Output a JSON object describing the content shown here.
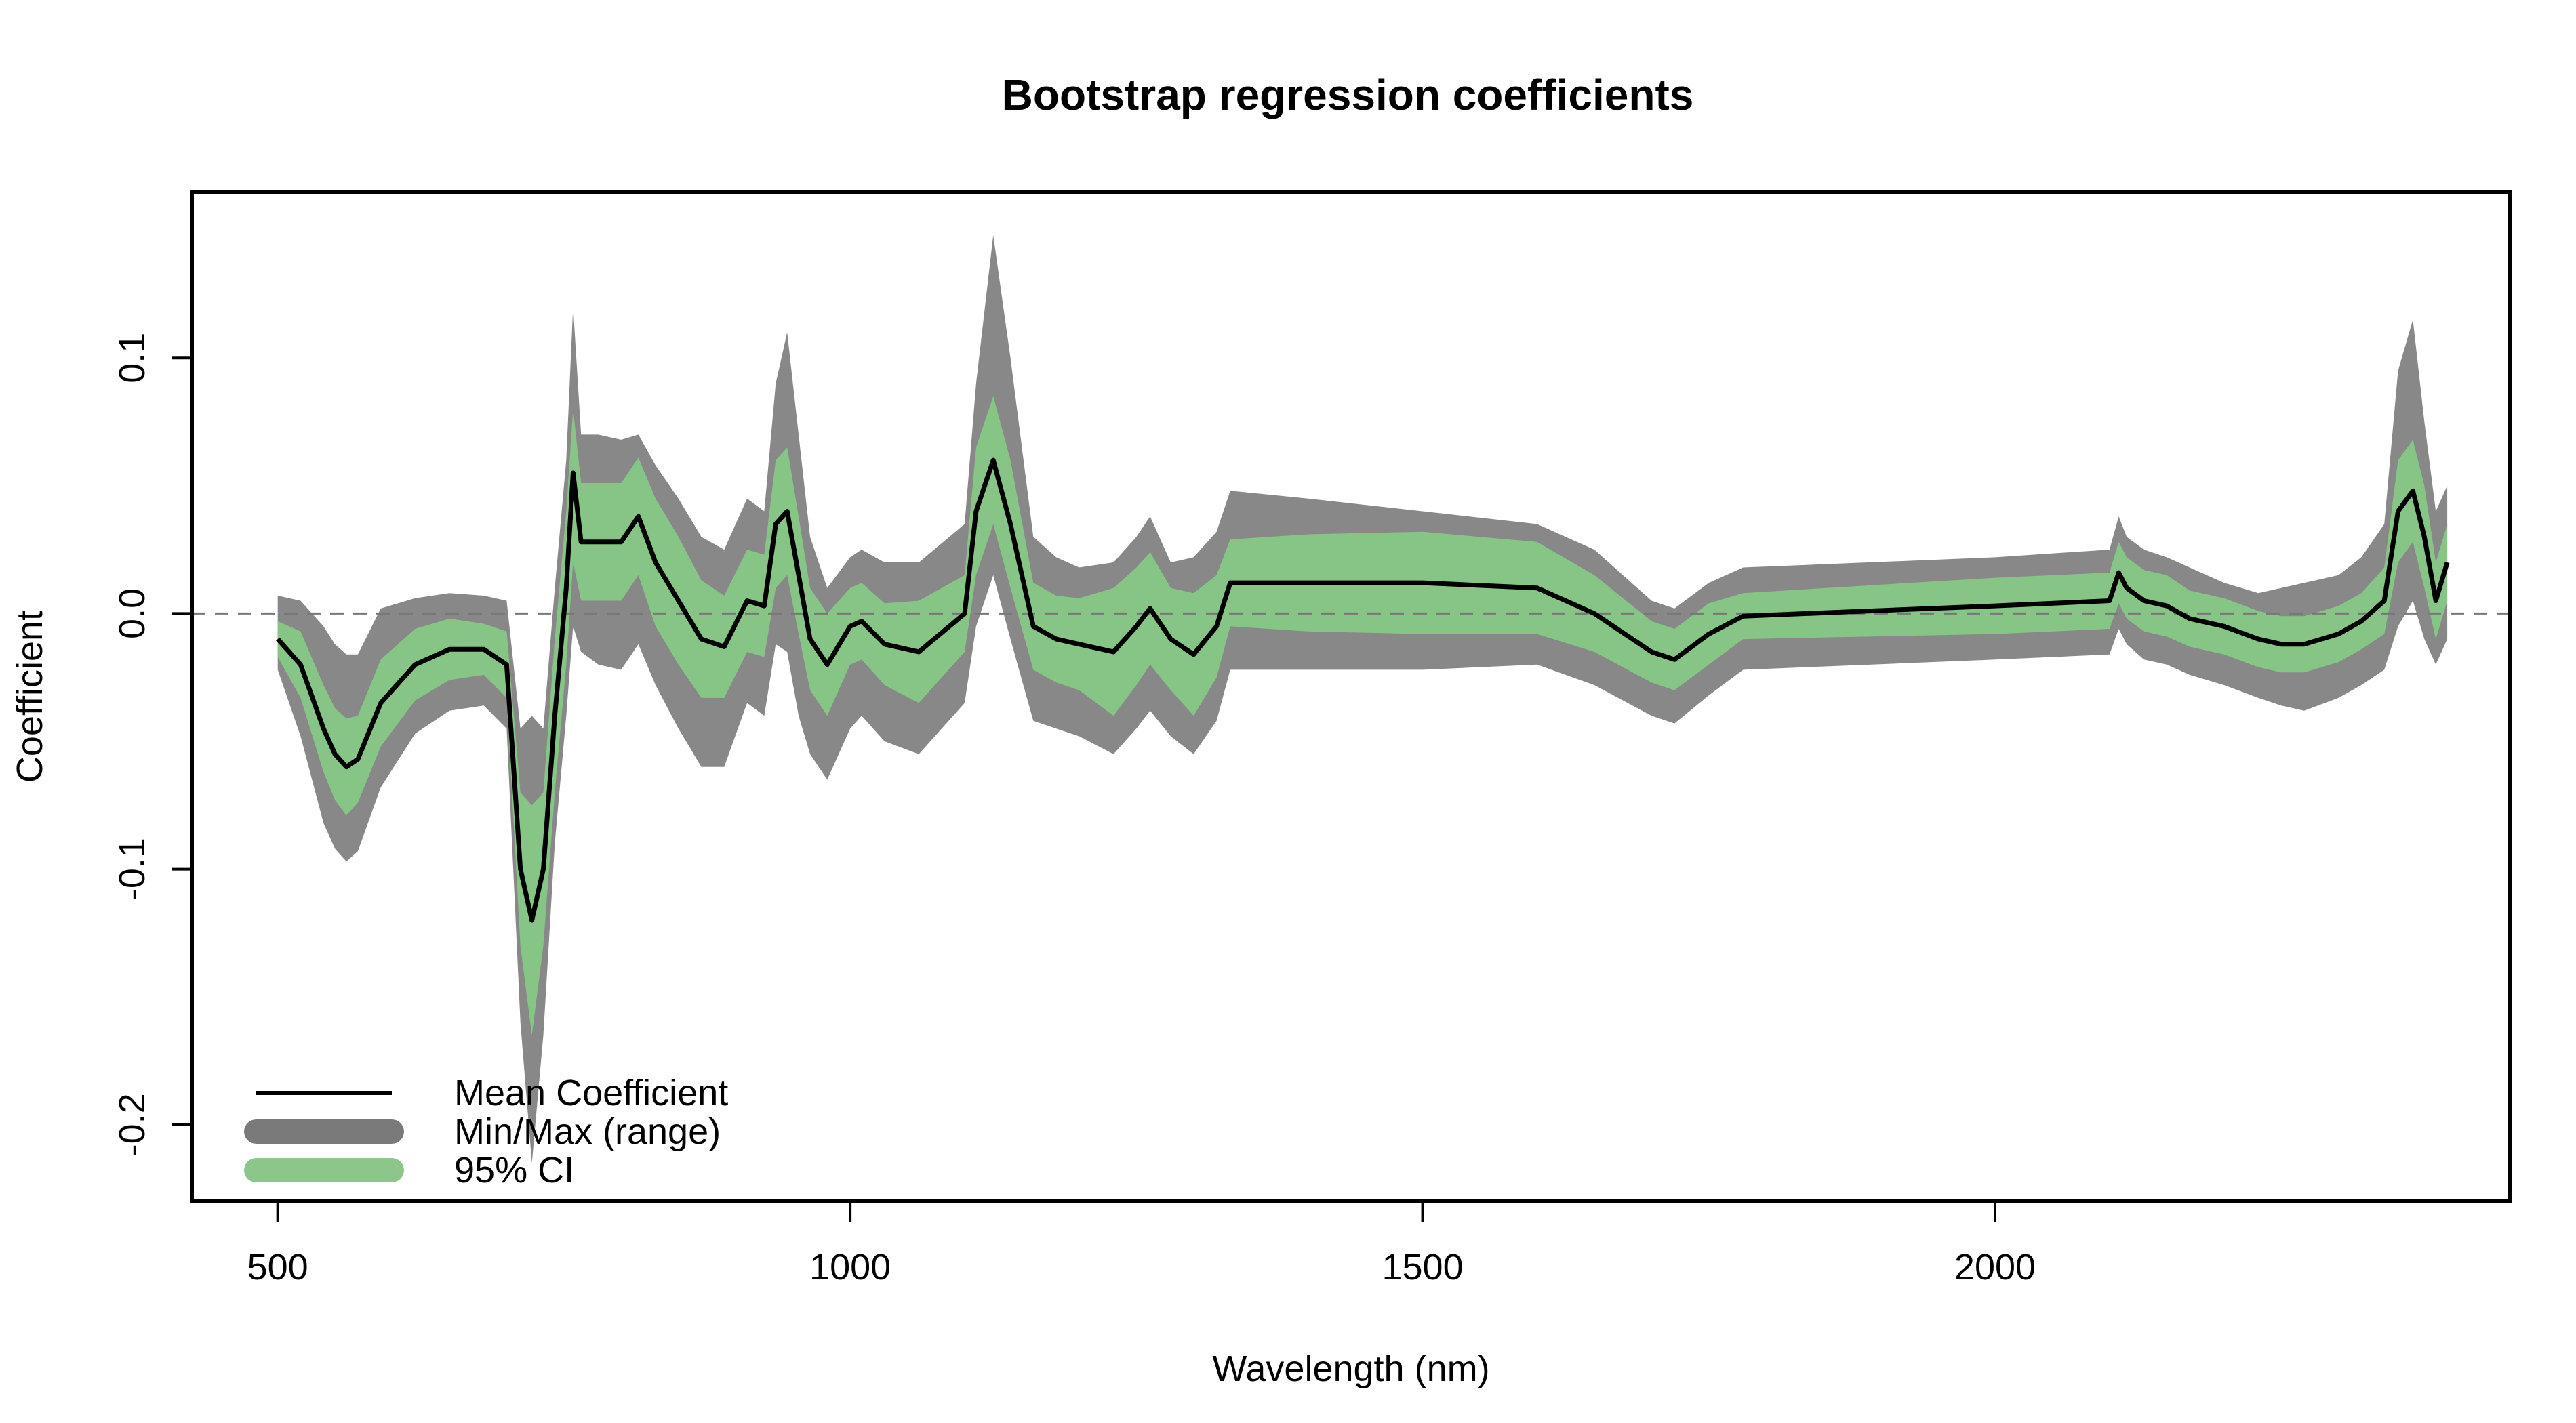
{
  "chart_data": {
    "type": "area",
    "title": "Bootstrap regression coefficients",
    "xlabel": "Wavelength (nm)",
    "ylabel": "Coefficient",
    "xlim": [
      425,
      2450
    ],
    "ylim": [
      -0.23,
      0.165
    ],
    "x_ticks": [
      500,
      1000,
      1500,
      2000
    ],
    "x_tick_labels": [
      "500",
      "1000",
      "1500",
      "2000"
    ],
    "y_ticks": [
      -0.2,
      -0.1,
      0.0,
      0.1
    ],
    "y_tick_labels": [
      "-0.2",
      "-0.1",
      "0.0",
      "0.1"
    ],
    "reference_line": {
      "y": 0,
      "style": "dashed",
      "color": "#777777"
    },
    "grid": false,
    "legend": {
      "position": "bottom-left",
      "entries": [
        {
          "label": "Mean Coefficient",
          "kind": "line",
          "color": "#000000"
        },
        {
          "label": "Min/Max (range)",
          "kind": "band",
          "color": "#7a7a7a"
        },
        {
          "label": "95% CI",
          "kind": "band",
          "color": "#8cc68a"
        }
      ]
    },
    "colors": {
      "range": "#888888",
      "ci": "#86c586",
      "mean": "#000000"
    },
    "series": [
      {
        "name": "Mean Coefficient",
        "x": [
          500,
          520,
          540,
          550,
          560,
          570,
          590,
          620,
          650,
          680,
          700,
          712,
          722,
          732,
          742,
          752,
          758,
          765,
          780,
          800,
          815,
          830,
          850,
          870,
          890,
          910,
          925,
          935,
          945,
          955,
          965,
          980,
          1000,
          1010,
          1030,
          1060,
          1100,
          1110,
          1125,
          1140,
          1160,
          1180,
          1200,
          1230,
          1250,
          1262,
          1280,
          1300,
          1320,
          1332,
          1400,
          1500,
          1600,
          1650,
          1700,
          1720,
          1750,
          1780,
          2000,
          2100,
          2108,
          2115,
          2130,
          2150,
          2170,
          2200,
          2230,
          2250,
          2270,
          2300,
          2320,
          2340,
          2352,
          2365,
          2375,
          2385,
          2395
        ],
        "y": [
          -0.01,
          -0.02,
          -0.045,
          -0.055,
          -0.06,
          -0.057,
          -0.035,
          -0.02,
          -0.014,
          -0.014,
          -0.02,
          -0.1,
          -0.12,
          -0.1,
          -0.04,
          0.01,
          0.055,
          0.028,
          0.028,
          0.028,
          0.038,
          0.02,
          0.005,
          -0.01,
          -0.013,
          0.005,
          0.003,
          0.035,
          0.04,
          0.015,
          -0.01,
          -0.02,
          -0.005,
          -0.003,
          -0.012,
          -0.015,
          0.0,
          0.04,
          0.06,
          0.035,
          -0.005,
          -0.01,
          -0.012,
          -0.015,
          -0.005,
          0.002,
          -0.01,
          -0.016,
          -0.005,
          0.012,
          0.012,
          0.012,
          0.01,
          0.0,
          -0.015,
          -0.018,
          -0.008,
          -0.001,
          0.003,
          0.005,
          0.016,
          0.01,
          0.005,
          0.003,
          -0.002,
          -0.005,
          -0.01,
          -0.012,
          -0.012,
          -0.008,
          -0.003,
          0.005,
          0.04,
          0.048,
          0.03,
          0.005,
          0.02
        ]
      },
      {
        "name": "95% CI",
        "x": [
          500,
          520,
          540,
          550,
          560,
          570,
          590,
          620,
          650,
          680,
          700,
          712,
          722,
          732,
          742,
          752,
          758,
          765,
          780,
          800,
          815,
          830,
          850,
          870,
          890,
          910,
          925,
          935,
          945,
          955,
          965,
          980,
          1000,
          1010,
          1030,
          1060,
          1100,
          1110,
          1125,
          1140,
          1160,
          1180,
          1200,
          1230,
          1250,
          1262,
          1280,
          1300,
          1320,
          1332,
          1400,
          1500,
          1600,
          1650,
          1700,
          1720,
          1750,
          1780,
          2000,
          2100,
          2108,
          2115,
          2130,
          2150,
          2170,
          2200,
          2230,
          2250,
          2270,
          2300,
          2320,
          2340,
          2352,
          2365,
          2375,
          2385,
          2395
        ],
        "lower": [
          -0.017,
          -0.033,
          -0.062,
          -0.073,
          -0.079,
          -0.074,
          -0.052,
          -0.034,
          -0.026,
          -0.024,
          -0.033,
          -0.13,
          -0.165,
          -0.13,
          -0.07,
          -0.02,
          0.02,
          0.005,
          0.005,
          0.005,
          0.015,
          -0.005,
          -0.02,
          -0.033,
          -0.033,
          -0.015,
          -0.017,
          0.01,
          0.015,
          -0.008,
          -0.03,
          -0.04,
          -0.02,
          -0.018,
          -0.028,
          -0.035,
          -0.015,
          0.015,
          0.035,
          0.01,
          -0.022,
          -0.027,
          -0.03,
          -0.04,
          -0.028,
          -0.02,
          -0.03,
          -0.04,
          -0.025,
          -0.005,
          -0.007,
          -0.008,
          -0.008,
          -0.015,
          -0.027,
          -0.03,
          -0.02,
          -0.01,
          -0.008,
          -0.006,
          0.004,
          -0.002,
          -0.007,
          -0.009,
          -0.013,
          -0.016,
          -0.021,
          -0.023,
          -0.023,
          -0.019,
          -0.014,
          -0.008,
          0.02,
          0.028,
          0.01,
          -0.01,
          0.005
        ],
        "upper": [
          -0.003,
          -0.007,
          -0.028,
          -0.037,
          -0.041,
          -0.04,
          -0.018,
          -0.006,
          -0.002,
          -0.004,
          -0.007,
          -0.07,
          -0.075,
          -0.07,
          -0.01,
          0.04,
          0.08,
          0.051,
          0.051,
          0.051,
          0.061,
          0.045,
          0.03,
          0.013,
          0.007,
          0.025,
          0.023,
          0.06,
          0.065,
          0.038,
          0.01,
          0.0,
          0.01,
          0.012,
          0.004,
          0.005,
          0.015,
          0.065,
          0.085,
          0.06,
          0.012,
          0.007,
          0.006,
          0.01,
          0.018,
          0.024,
          0.01,
          0.008,
          0.015,
          0.029,
          0.031,
          0.032,
          0.028,
          0.015,
          -0.003,
          -0.006,
          0.004,
          0.008,
          0.014,
          0.016,
          0.028,
          0.022,
          0.017,
          0.015,
          0.009,
          0.006,
          0.001,
          -0.001,
          -0.001,
          0.003,
          0.008,
          0.018,
          0.06,
          0.068,
          0.05,
          0.02,
          0.035
        ]
      },
      {
        "name": "Min/Max (range)",
        "x": [
          500,
          520,
          540,
          550,
          560,
          570,
          590,
          620,
          650,
          680,
          700,
          712,
          722,
          732,
          742,
          752,
          758,
          765,
          780,
          800,
          815,
          830,
          850,
          870,
          890,
          910,
          925,
          935,
          945,
          955,
          965,
          980,
          1000,
          1010,
          1030,
          1060,
          1100,
          1110,
          1125,
          1140,
          1160,
          1180,
          1200,
          1230,
          1250,
          1262,
          1280,
          1300,
          1320,
          1332,
          1400,
          1500,
          1600,
          1650,
          1700,
          1720,
          1750,
          1780,
          2000,
          2100,
          2108,
          2115,
          2130,
          2150,
          2170,
          2200,
          2230,
          2250,
          2270,
          2300,
          2320,
          2340,
          2352,
          2365,
          2375,
          2385,
          2395
        ],
        "lower": [
          -0.022,
          -0.048,
          -0.082,
          -0.092,
          -0.097,
          -0.093,
          -0.068,
          -0.047,
          -0.038,
          -0.036,
          -0.045,
          -0.16,
          -0.215,
          -0.165,
          -0.09,
          -0.04,
          -0.005,
          -0.015,
          -0.02,
          -0.022,
          -0.012,
          -0.028,
          -0.045,
          -0.06,
          -0.06,
          -0.035,
          -0.04,
          -0.012,
          -0.015,
          -0.04,
          -0.055,
          -0.065,
          -0.045,
          -0.04,
          -0.05,
          -0.055,
          -0.035,
          -0.005,
          0.015,
          -0.01,
          -0.042,
          -0.045,
          -0.048,
          -0.055,
          -0.045,
          -0.038,
          -0.048,
          -0.055,
          -0.042,
          -0.022,
          -0.022,
          -0.022,
          -0.02,
          -0.028,
          -0.04,
          -0.043,
          -0.032,
          -0.022,
          -0.018,
          -0.016,
          -0.006,
          -0.012,
          -0.018,
          -0.02,
          -0.024,
          -0.028,
          -0.033,
          -0.036,
          -0.038,
          -0.033,
          -0.028,
          -0.022,
          -0.005,
          0.005,
          -0.01,
          -0.02,
          -0.01
        ],
        "upper": [
          0.007,
          0.005,
          -0.005,
          -0.012,
          -0.016,
          -0.016,
          0.002,
          0.006,
          0.008,
          0.007,
          0.005,
          -0.045,
          -0.04,
          -0.045,
          0.01,
          0.06,
          0.12,
          0.07,
          0.07,
          0.068,
          0.07,
          0.058,
          0.045,
          0.03,
          0.025,
          0.045,
          0.04,
          0.09,
          0.11,
          0.07,
          0.03,
          0.01,
          0.022,
          0.025,
          0.02,
          0.02,
          0.035,
          0.09,
          0.148,
          0.1,
          0.03,
          0.022,
          0.018,
          0.02,
          0.03,
          0.038,
          0.02,
          0.022,
          0.032,
          0.048,
          0.045,
          0.04,
          0.035,
          0.025,
          0.005,
          0.002,
          0.012,
          0.018,
          0.022,
          0.025,
          0.038,
          0.03,
          0.025,
          0.022,
          0.018,
          0.012,
          0.008,
          0.01,
          0.012,
          0.015,
          0.022,
          0.035,
          0.095,
          0.115,
          0.075,
          0.04,
          0.05
        ]
      }
    ]
  }
}
